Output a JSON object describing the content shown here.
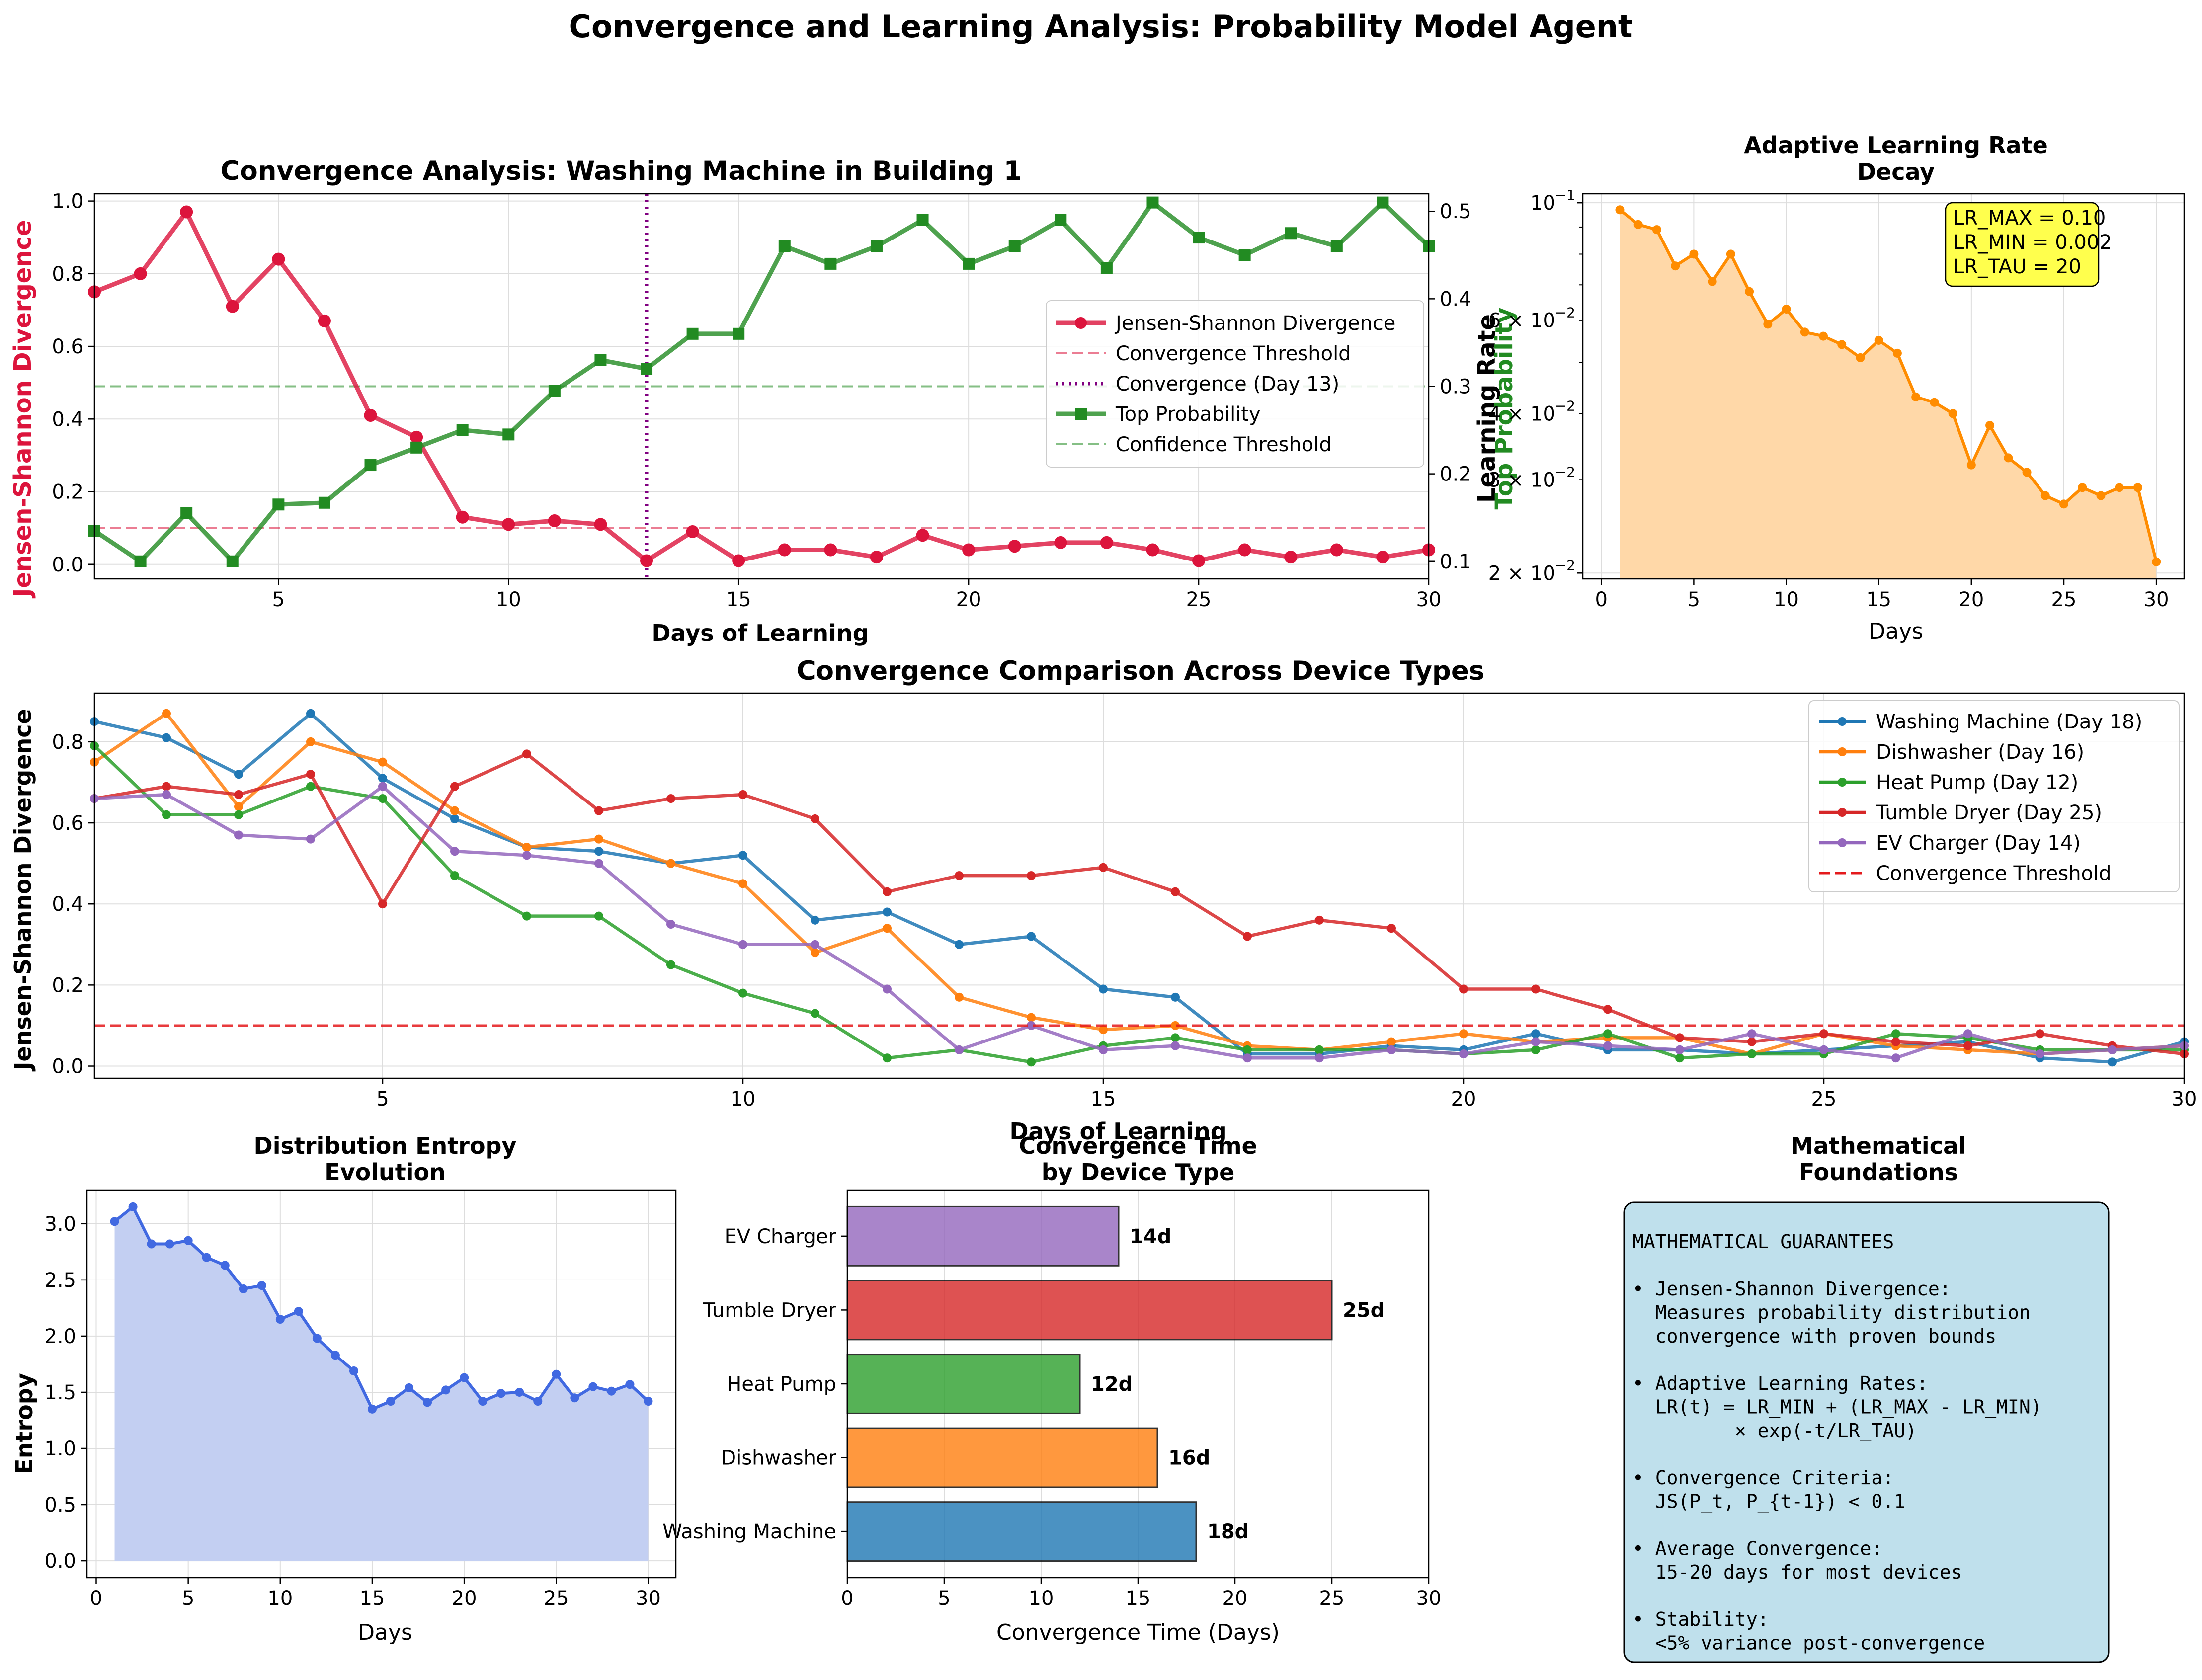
{
  "figure": {
    "title": "Convergence and Learning Analysis: Probability Model Agent"
  },
  "colors": {
    "js": "#dc143c",
    "top": "#228b22",
    "conv_line": "#800080",
    "lr": "#ff8c00",
    "lr_fill": "#ffd8a8",
    "entropy": "#4169e1",
    "entropy_fill": "#c3cff2",
    "wm": "#1f77b4",
    "dw": "#ff7f0e",
    "hp": "#2ca02c",
    "td": "#d62728",
    "ev": "#9467bd",
    "threshold": "#e41a1c",
    "math_box": "#bfe0ec",
    "lr_box": "#ffff4d"
  },
  "chart_data": [
    {
      "id": "convergence",
      "type": "line",
      "title": "Convergence Analysis: Washing Machine in Building 1",
      "xlabel": "Days of Learning",
      "ylabel": "Jensen-Shannon Divergence",
      "ylabel_right": "Top Probability",
      "ylabel_right_overlap": "Learning Rate",
      "xlim": [
        1,
        30
      ],
      "ylim": [
        -0.04,
        1.02
      ],
      "ylim_right": [
        0.08,
        0.52
      ],
      "xticks": [
        "5",
        "10",
        "15",
        "20",
        "25",
        "30"
      ],
      "yticks": [
        "0.0",
        "0.2",
        "0.4",
        "0.6",
        "0.8",
        "1.0"
      ],
      "yticks_right": [
        "0.1",
        "0.2",
        "0.3",
        "0.4",
        "0.5"
      ],
      "x": [
        1,
        2,
        3,
        4,
        5,
        6,
        7,
        8,
        9,
        10,
        11,
        12,
        13,
        14,
        15,
        16,
        17,
        18,
        19,
        20,
        21,
        22,
        23,
        24,
        25,
        26,
        27,
        28,
        29,
        30
      ],
      "js": [
        0.75,
        0.8,
        0.97,
        0.71,
        0.84,
        0.67,
        0.41,
        0.35,
        0.13,
        0.11,
        0.12,
        0.11,
        0.01,
        0.09,
        0.01,
        0.04,
        0.04,
        0.02,
        0.08,
        0.04,
        0.05,
        0.06,
        0.06,
        0.04,
        0.01,
        0.04,
        0.02,
        0.04,
        0.02,
        0.04
      ],
      "top_prob": [
        0.135,
        0.1,
        0.155,
        0.1,
        0.165,
        0.167,
        0.21,
        0.23,
        0.25,
        0.245,
        0.295,
        0.33,
        0.32,
        0.36,
        0.36,
        0.46,
        0.44,
        0.46,
        0.49,
        0.44,
        0.46,
        0.49,
        0.435,
        0.51,
        0.47,
        0.45,
        0.475,
        0.46,
        0.51,
        0.46
      ],
      "convergence_threshold": 0.1,
      "confidence_threshold": 0.3,
      "convergence_day": 13,
      "legend": [
        "Jensen-Shannon Divergence",
        "Convergence Threshold",
        "Convergence (Day 13)",
        "Top Probability",
        "Confidence Threshold"
      ],
      "legend_position": "center-right",
      "grid": true
    },
    {
      "id": "learning_rate",
      "type": "area",
      "title_lines": [
        "Adaptive Learning Rate",
        "Decay"
      ],
      "xlabel": "Days",
      "yscale": "log",
      "xlim": [
        -1,
        31.5
      ],
      "ylim": [
        0.0195,
        0.104
      ],
      "xticks": [
        0,
        5,
        10,
        15,
        20,
        25,
        30
      ],
      "yticks_major": [
        {
          "v": 0.1,
          "label": "10",
          "exp": "−1"
        },
        {
          "v": 0.02,
          "label": "2 × 10",
          "exp": "−2"
        }
      ],
      "yticks_minor": [
        {
          "v": 0.06,
          "label": "6 × 10",
          "exp": "−2"
        },
        {
          "v": 0.04,
          "label": "4 × 10",
          "exp": "−2"
        },
        {
          "v": 0.03,
          "label": "3 × 10",
          "exp": "−2"
        }
      ],
      "x": [
        1,
        2,
        3,
        4,
        5,
        6,
        7,
        8,
        9,
        10,
        11,
        12,
        13,
        14,
        15,
        16,
        17,
        18,
        19,
        20,
        21,
        22,
        23,
        24,
        25,
        26,
        27,
        28,
        29,
        30
      ],
      "values": [
        0.097,
        0.091,
        0.089,
        0.076,
        0.08,
        0.071,
        0.08,
        0.068,
        0.059,
        0.063,
        0.057,
        0.056,
        0.054,
        0.051,
        0.055,
        0.052,
        0.043,
        0.042,
        0.04,
        0.032,
        0.038,
        0.033,
        0.031,
        0.028,
        0.027,
        0.029,
        0.028,
        0.029,
        0.029,
        0.021
      ],
      "annotation": [
        "LR_MAX = 0.10",
        "LR_MIN = 0.002",
        "LR_TAU = 20"
      ],
      "grid": true
    },
    {
      "id": "comparison",
      "type": "line",
      "title": "Convergence Comparison Across Device Types",
      "xlabel": "Days of Learning",
      "ylabel": "Jensen-Shannon Divergence",
      "xlim": [
        1,
        30
      ],
      "ylim": [
        -0.03,
        0.92
      ],
      "xticks": [
        "5",
        "10",
        "15",
        "20",
        "25",
        "30"
      ],
      "yticks": [
        "0.0",
        "0.2",
        "0.4",
        "0.6",
        "0.8"
      ],
      "x": [
        1,
        2,
        3,
        4,
        5,
        6,
        7,
        8,
        9,
        10,
        11,
        12,
        13,
        14,
        15,
        16,
        17,
        18,
        19,
        20,
        21,
        22,
        23,
        24,
        25,
        26,
        27,
        28,
        29,
        30
      ],
      "series": [
        {
          "name": "Washing Machine (Day 18)",
          "key": "wm",
          "values": [
            0.85,
            0.81,
            0.72,
            0.87,
            0.71,
            0.61,
            0.54,
            0.53,
            0.5,
            0.52,
            0.36,
            0.38,
            0.3,
            0.32,
            0.19,
            0.17,
            0.03,
            0.03,
            0.05,
            0.04,
            0.08,
            0.04,
            0.04,
            0.03,
            0.04,
            0.05,
            0.06,
            0.02,
            0.01,
            0.06
          ]
        },
        {
          "name": "Dishwasher (Day 16)",
          "key": "dw",
          "values": [
            0.75,
            0.87,
            0.64,
            0.8,
            0.75,
            0.63,
            0.54,
            0.56,
            0.5,
            0.45,
            0.28,
            0.34,
            0.17,
            0.12,
            0.09,
            0.1,
            0.05,
            0.04,
            0.06,
            0.08,
            0.06,
            0.07,
            0.07,
            0.03,
            0.08,
            0.05,
            0.04,
            0.03,
            0.04,
            0.05
          ]
        },
        {
          "name": "Heat Pump (Day 12)",
          "key": "hp",
          "values": [
            0.79,
            0.62,
            0.62,
            0.69,
            0.66,
            0.47,
            0.37,
            0.37,
            0.25,
            0.18,
            0.13,
            0.02,
            0.04,
            0.01,
            0.05,
            0.07,
            0.04,
            0.04,
            0.04,
            0.03,
            0.04,
            0.08,
            0.02,
            0.03,
            0.03,
            0.08,
            0.07,
            0.04,
            0.04,
            0.04
          ]
        },
        {
          "name": "Tumble Dryer (Day 25)",
          "key": "td",
          "values": [
            0.66,
            0.69,
            0.67,
            0.72,
            0.4,
            0.69,
            0.77,
            0.63,
            0.66,
            0.67,
            0.61,
            0.43,
            0.47,
            0.47,
            0.49,
            0.43,
            0.32,
            0.36,
            0.34,
            0.19,
            0.19,
            0.14,
            0.07,
            0.06,
            0.08,
            0.06,
            0.05,
            0.08,
            0.05,
            0.03
          ]
        },
        {
          "name": "EV Charger (Day 14)",
          "key": "ev",
          "values": [
            0.66,
            0.67,
            0.57,
            0.56,
            0.69,
            0.53,
            0.52,
            0.5,
            0.35,
            0.3,
            0.3,
            0.19,
            0.04,
            0.1,
            0.04,
            0.05,
            0.02,
            0.02,
            0.04,
            0.03,
            0.06,
            0.05,
            0.04,
            0.08,
            0.04,
            0.02,
            0.08,
            0.03,
            0.04,
            0.05
          ]
        }
      ],
      "threshold": 0.1,
      "threshold_label": "Convergence Threshold",
      "legend_position": "top-right",
      "grid": true
    },
    {
      "id": "entropy",
      "type": "area",
      "title_lines": [
        "Distribution Entropy",
        "Evolution"
      ],
      "xlabel": "Days",
      "ylabel": "Entropy",
      "xlim": [
        -0.5,
        31.5
      ],
      "ylim": [
        -0.15,
        3.3
      ],
      "xticks": [
        0,
        5,
        10,
        15,
        20,
        25,
        30
      ],
      "yticks": [
        "0.0",
        "0.5",
        "1.0",
        "1.5",
        "2.0",
        "2.5",
        "3.0"
      ],
      "x": [
        1,
        2,
        3,
        4,
        5,
        6,
        7,
        8,
        9,
        10,
        11,
        12,
        13,
        14,
        15,
        16,
        17,
        18,
        19,
        20,
        21,
        22,
        23,
        24,
        25,
        26,
        27,
        28,
        29,
        30
      ],
      "values": [
        3.02,
        3.15,
        2.82,
        2.82,
        2.85,
        2.7,
        2.63,
        2.42,
        2.45,
        2.15,
        2.22,
        1.98,
        1.83,
        1.69,
        1.35,
        1.42,
        1.54,
        1.41,
        1.52,
        1.63,
        1.42,
        1.49,
        1.5,
        1.42,
        1.66,
        1.45,
        1.55,
        1.51,
        1.57,
        1.42
      ],
      "grid": true
    },
    {
      "id": "convergence_time",
      "type": "bar",
      "orientation": "horizontal",
      "title_lines": [
        "Convergence Time",
        "by Device Type"
      ],
      "xlabel": "Convergence Time (Days)",
      "xlim": [
        0,
        30
      ],
      "xticks": [
        0,
        5,
        10,
        15,
        20,
        25,
        30
      ],
      "categories": [
        "Washing Machine",
        "Dishwasher",
        "Heat Pump",
        "Tumble Dryer",
        "EV Charger"
      ],
      "keys": [
        "wm",
        "dw",
        "hp",
        "td",
        "ev"
      ],
      "values": [
        18,
        16,
        12,
        25,
        14
      ],
      "data_labels": [
        "18d",
        "16d",
        "12d",
        "25d",
        "14d"
      ],
      "grid": true
    }
  ],
  "math_panel": {
    "title_lines": [
      "Mathematical",
      "Foundations"
    ],
    "lines": [
      "MATHEMATICAL GUARANTEES",
      "",
      "• Jensen-Shannon Divergence:",
      "  Measures probability distribution",
      "  convergence with proven bounds",
      "",
      "• Adaptive Learning Rates:",
      "  LR(t) = LR_MIN + (LR_MAX - LR_MIN)",
      "         × exp(-t/LR_TAU)",
      "",
      "• Convergence Criteria:",
      "  JS(P_t, P_{t-1}) < 0.1",
      "",
      "• Average Convergence:",
      "  15-20 days for most devices",
      "",
      "• Stability:",
      "  <5% variance post-convergence"
    ]
  }
}
